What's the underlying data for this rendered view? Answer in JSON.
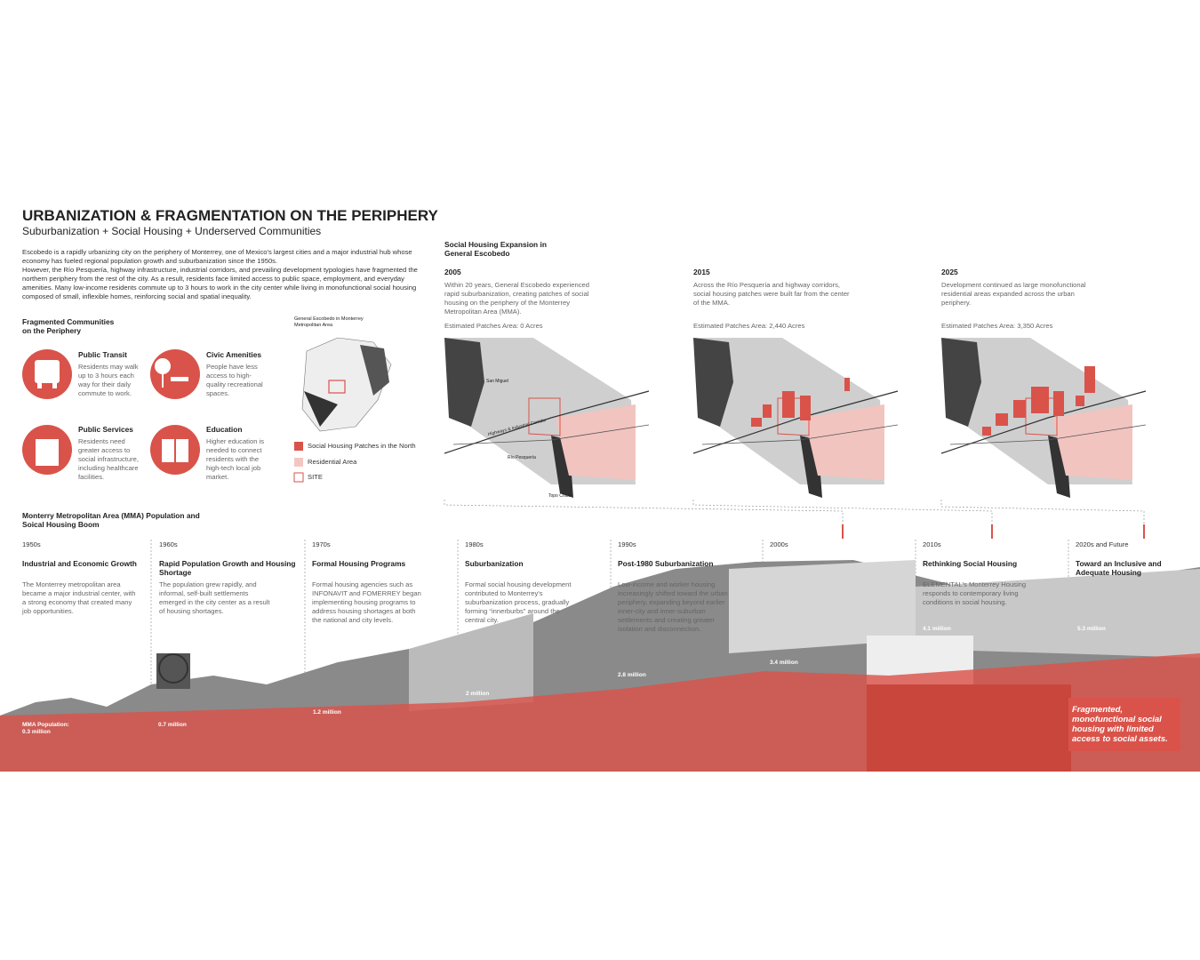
{
  "header": {
    "title": "URBANIZATION & FRAGMENTATION ON THE PERIPHERY",
    "subtitle": "Suburbanization + Social Housing + Underserved Communities",
    "intro": [
      "Escobedo is a rapidly urbanizing city on the periphery of Monterrey, one of Mexico's largest cities and a major industrial hub whose economy has fueled regional population growth and suburbanization since the 1950s.",
      "However, the Río Pesquería, highway infrastructure, industrial corridors, and prevailing development typologies have fragmented the northern periphery from the rest of the city. As a result, residents face limited access to public space, employment, and everyday amenities. Many low-income residents commute up to 3 hours to work in the city center while living in monofunctional social housing composed of small, inflexible homes, reinforcing social and spatial inequality."
    ]
  },
  "fragmented": {
    "title": "Fragmented Communities on the Periphery",
    "items": [
      {
        "title": "Public Transit",
        "text": "Residents may walk up to 3 hours each way for their daily commute to work."
      },
      {
        "title": "Civic Amenities",
        "text": "People have less access to high-quality recreational spaces."
      },
      {
        "title": "Public Services",
        "text": "Residents need greater access to social infrastructure, including healthcare facilities."
      },
      {
        "title": "Education",
        "text": "Higher education is needed to connect residents with the high-tech local job market."
      }
    ]
  },
  "locator": {
    "caption": "General Escobedo in Monterrey Metropolitan Area",
    "legend": [
      "Social Housing Patches in the North",
      "Residential Area",
      "SITE"
    ]
  },
  "expansion": {
    "title": "Social Housing Expansion in General Escobedo",
    "panels": [
      {
        "year": "2005",
        "text": "Within 20 years, General Escobedo experienced rapid suburbanization, creating patches of social housing on the periphery of the Monterrey Metropolitan Area (MMA).",
        "area": "Estimated Patches Area: 0 Acres"
      },
      {
        "year": "2015",
        "text": "Across the Río Pesquería and highway corridors, social housing patches were built far from the center of the MMA.",
        "area": "Estimated Patches Area: 2,440 Acres"
      },
      {
        "year": "2025",
        "text": "Development continued as large monofunctional residential areas expanded across the urban periphery.",
        "area": "Estimated Patches Area: 3,350 Acres"
      }
    ],
    "map_labels": [
      "San Miguel",
      "Highways & Industrial Corridor",
      "Río Pesquería",
      "Topo Chico"
    ]
  },
  "timeline": {
    "title": "Monterry Metropolitan Area (MMA) Population and Soical Housing Boom",
    "eras": [
      {
        "decade": "1950s",
        "heading": "Industrial and Economic Growth",
        "text": "The Monterrey metropolitan area became a major industrial center, with a strong economy that created many job opportunities."
      },
      {
        "decade": "1960s",
        "heading": "Rapid Population Growth and Housing Shortage",
        "text": "The population grew rapidly, and informal, self-built settlements emerged in the city center as a result of housing shortages."
      },
      {
        "decade": "1970s",
        "heading": "Formal Housing Programs",
        "text": "Formal housing agencies such as INFONAVIT and FOMERREY began implementing housing programs to address housing shortages at both the national and city levels."
      },
      {
        "decade": "1980s",
        "heading": "Suburbanization",
        "text": "Formal social housing development contributed to Monterrey's suburbanization process, gradually forming “innerburbs” around the central city."
      },
      {
        "decade": "1990s",
        "heading": "Post-1980 Suburbanization",
        "text": "Low-income and worker housing increasingly shifted toward the urban periphery, expanding beyond earlier inner-city and inner-suburban settlements and creating greater isolation and disconnection."
      },
      {
        "decade": "2000s"
      },
      {
        "decade": "2010s",
        "heading": "Rethinking Social Housing",
        "text": "ELEMENTAL's Monterrey Housing responds to contemporary living conditions in social housing."
      },
      {
        "decade": "2020s and Future",
        "heading": "Toward an Inclusive and Adequate Housing"
      }
    ],
    "population": [
      "MMA Population: 0.3 million",
      "0.7 million",
      "1.2 million",
      "2 million",
      "2.8 million",
      "3.4 million",
      "4.1 million",
      "5.3 million"
    ],
    "callout": "Fragmented, monofunctional social housing with limited access to social assets."
  }
}
